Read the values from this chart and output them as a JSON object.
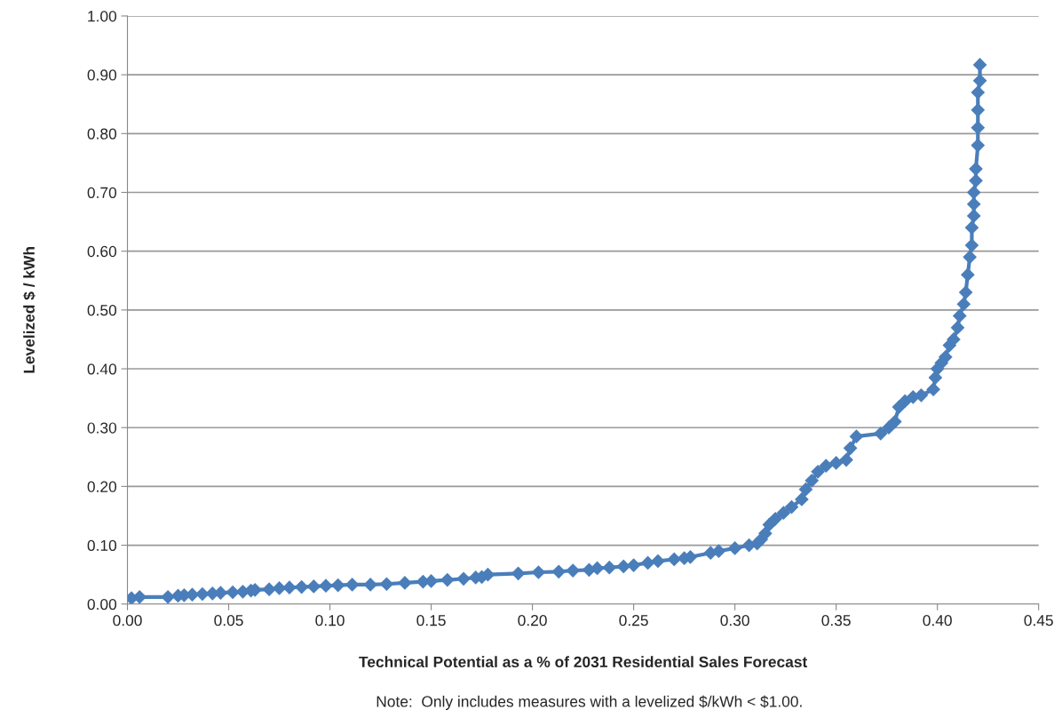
{
  "chart_data": {
    "type": "line",
    "xlabel": "Technical Potential as a % of 2031 Residential Sales Forecast",
    "ylabel": "Levelized $ / kWh",
    "annotations": [
      "Note:  Only includes measures with a levelized $/kWh < $1.00."
    ],
    "x": [
      0.002,
      0.006,
      0.02,
      0.025,
      0.028,
      0.032,
      0.037,
      0.042,
      0.046,
      0.052,
      0.057,
      0.061,
      0.063,
      0.07,
      0.075,
      0.08,
      0.086,
      0.092,
      0.098,
      0.104,
      0.111,
      0.12,
      0.128,
      0.137,
      0.146,
      0.15,
      0.158,
      0.166,
      0.172,
      0.175,
      0.178,
      0.193,
      0.203,
      0.213,
      0.22,
      0.228,
      0.232,
      0.238,
      0.245,
      0.25,
      0.257,
      0.262,
      0.27,
      0.275,
      0.278,
      0.288,
      0.292,
      0.3,
      0.307,
      0.311,
      0.313,
      0.315,
      0.317,
      0.32,
      0.324,
      0.328,
      0.333,
      0.335,
      0.338,
      0.341,
      0.345,
      0.35,
      0.355,
      0.357,
      0.36,
      0.372,
      0.376,
      0.379,
      0.381,
      0.384,
      0.388,
      0.392,
      0.398,
      0.399,
      0.4,
      0.402,
      0.404,
      0.406,
      0.408,
      0.41,
      0.411,
      0.413,
      0.414,
      0.415,
      0.416,
      0.417,
      0.417,
      0.418,
      0.418,
      0.418,
      0.419,
      0.419,
      0.42,
      0.42,
      0.42,
      0.42,
      0.421,
      0.421
    ],
    "series": [
      {
        "color": "#4a7ebb",
        "values": [
          0.01,
          0.012,
          0.012,
          0.014,
          0.015,
          0.016,
          0.017,
          0.018,
          0.019,
          0.02,
          0.021,
          0.023,
          0.024,
          0.025,
          0.027,
          0.028,
          0.029,
          0.03,
          0.031,
          0.032,
          0.033,
          0.033,
          0.034,
          0.036,
          0.038,
          0.039,
          0.041,
          0.043,
          0.045,
          0.046,
          0.05,
          0.052,
          0.054,
          0.055,
          0.057,
          0.058,
          0.061,
          0.062,
          0.064,
          0.066,
          0.07,
          0.073,
          0.076,
          0.078,
          0.08,
          0.087,
          0.09,
          0.095,
          0.1,
          0.103,
          0.11,
          0.12,
          0.135,
          0.145,
          0.155,
          0.165,
          0.178,
          0.195,
          0.21,
          0.225,
          0.235,
          0.24,
          0.245,
          0.265,
          0.285,
          0.29,
          0.3,
          0.31,
          0.335,
          0.345,
          0.352,
          0.355,
          0.365,
          0.385,
          0.4,
          0.41,
          0.42,
          0.44,
          0.45,
          0.47,
          0.49,
          0.51,
          0.53,
          0.56,
          0.59,
          0.61,
          0.64,
          0.66,
          0.68,
          0.7,
          0.72,
          0.74,
          0.78,
          0.81,
          0.84,
          0.87,
          0.89,
          0.917
        ]
      }
    ],
    "xlim": [
      0,
      0.45
    ],
    "xticks": [
      {
        "value": 0,
        "label": "0.00"
      },
      {
        "value": 0.05,
        "label": "0.05"
      },
      {
        "value": 0.1,
        "label": "0.10"
      },
      {
        "value": 0.15,
        "label": "0.15"
      },
      {
        "value": 0.2,
        "label": "0.20"
      },
      {
        "value": 0.25,
        "label": "0.25"
      },
      {
        "value": 0.3,
        "label": "0.30"
      },
      {
        "value": 0.35,
        "label": "0.35"
      },
      {
        "value": 0.4,
        "label": "0.40"
      },
      {
        "value": 0.45,
        "label": "0.45"
      }
    ],
    "ylim": [
      0,
      1
    ],
    "yticks": [
      {
        "value": 0,
        "label": "0.00"
      },
      {
        "value": 0.1,
        "label": "0.10"
      },
      {
        "value": 0.2,
        "label": "0.20"
      },
      {
        "value": 0.3,
        "label": "0.30"
      },
      {
        "value": 0.4,
        "label": "0.40"
      },
      {
        "value": 0.5,
        "label": "0.50"
      },
      {
        "value": 0.6,
        "label": "0.60"
      },
      {
        "value": 0.7,
        "label": "0.70"
      },
      {
        "value": 0.8,
        "label": "0.80"
      },
      {
        "value": 0.9,
        "label": "0.90"
      },
      {
        "value": 1,
        "label": "1.00"
      }
    ],
    "grid": "y",
    "marker": "diamond",
    "line_style": "solid"
  }
}
